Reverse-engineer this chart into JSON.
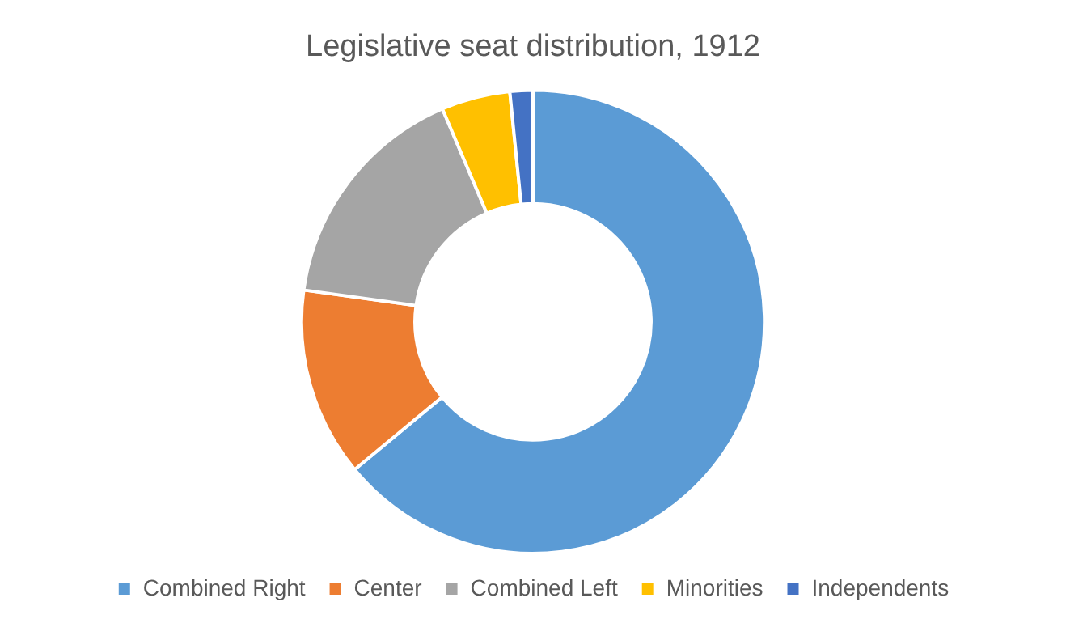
{
  "chart_data": {
    "type": "donut",
    "title": "Legislative seat distribution, 1912",
    "categories": [
      "Combined Right",
      "Center",
      "Combined Left",
      "Minorities",
      "Independents"
    ],
    "values": [
      64.0,
      13.2,
      16.4,
      4.8,
      1.6
    ],
    "colors": [
      "#5b9bd5",
      "#ed7d31",
      "#a5a5a5",
      "#ffc000",
      "#4472c4"
    ],
    "legend": "bottom"
  }
}
